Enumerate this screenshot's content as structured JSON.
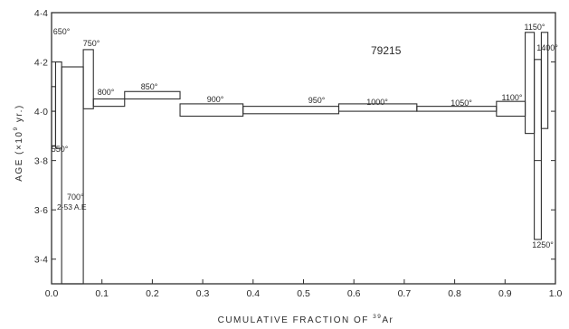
{
  "chart_data": {
    "type": "step-heating age spectrum",
    "sample": "79215",
    "xlabel": {
      "pre": "CUMULATIVE FRACTION OF ",
      "sup": "39",
      "post": "Ar"
    },
    "ylabel": {
      "pre": "AGE  (×10",
      "sup": "9",
      "post": " yr.)"
    },
    "xlim": [
      0.0,
      1.0
    ],
    "ylim": [
      3.3,
      4.4
    ],
    "x_ticks": [
      {
        "v": 0.0,
        "label": "0.0"
      },
      {
        "v": 0.1,
        "label": "0.1"
      },
      {
        "v": 0.2,
        "label": "0.2"
      },
      {
        "v": 0.3,
        "label": "0.3"
      },
      {
        "v": 0.4,
        "label": "0.4"
      },
      {
        "v": 0.5,
        "label": "0.5"
      },
      {
        "v": 0.6,
        "label": "0.6"
      },
      {
        "v": 0.7,
        "label": "0.7"
      },
      {
        "v": 0.8,
        "label": "0.8"
      },
      {
        "v": 0.9,
        "label": "0.9"
      },
      {
        "v": 1.0,
        "label": "1.0"
      }
    ],
    "y_ticks": [
      {
        "v": 3.4,
        "label": "3·4"
      },
      {
        "v": 3.6,
        "label": "3·6"
      },
      {
        "v": 3.8,
        "label": "3·8"
      },
      {
        "v": 4.0,
        "label": "4·0"
      },
      {
        "v": 4.2,
        "label": "4·2"
      },
      {
        "v": 4.4,
        "label": "4·4"
      }
    ],
    "steps": [
      {
        "label": "550°",
        "x0": 0.0,
        "x1": 0.008,
        "y_low": 3.86,
        "y_high": 4.1
      },
      {
        "label": "650°",
        "x0": 0.008,
        "x1": 0.02,
        "y_low": 3.85,
        "y_high": 4.2
      },
      {
        "label": "700°",
        "x0": 0.02,
        "x1": 0.063,
        "y_low": 3.3,
        "y_high": 4.18
      },
      {
        "label": "750°",
        "x0": 0.063,
        "x1": 0.083,
        "y_low": 4.01,
        "y_high": 4.25
      },
      {
        "label": "800°",
        "x0": 0.083,
        "x1": 0.145,
        "y_low": 4.02,
        "y_high": 4.05
      },
      {
        "label": "850°",
        "x0": 0.145,
        "x1": 0.255,
        "y_low": 4.05,
        "y_high": 4.08
      },
      {
        "label": "900°",
        "x0": 0.255,
        "x1": 0.38,
        "y_low": 3.98,
        "y_high": 4.03
      },
      {
        "label": "950°",
        "x0": 0.38,
        "x1": 0.57,
        "y_low": 3.99,
        "y_high": 4.02
      },
      {
        "label": "1000°",
        "x0": 0.57,
        "x1": 0.725,
        "y_low": 4.0,
        "y_high": 4.03
      },
      {
        "label": "1050°",
        "x0": 0.725,
        "x1": 0.883,
        "y_low": 4.0,
        "y_high": 4.02
      },
      {
        "label": "1100°",
        "x0": 0.883,
        "x1": 0.94,
        "y_low": 3.98,
        "y_high": 4.04
      },
      {
        "label": "1150°",
        "x0": 0.94,
        "x1": 0.958,
        "y_low": 3.91,
        "y_high": 4.32
      },
      {
        "label": "1250°",
        "x0": 0.958,
        "x1": 0.972,
        "y_low": 3.48,
        "y_high": 4.21
      },
      {
        "label": "1400°",
        "x0": 0.972,
        "x1": 0.985,
        "y_low": 3.93,
        "y_high": 4.32
      }
    ],
    "annotations": [
      {
        "text": "2·53 A.E"
      }
    ]
  }
}
